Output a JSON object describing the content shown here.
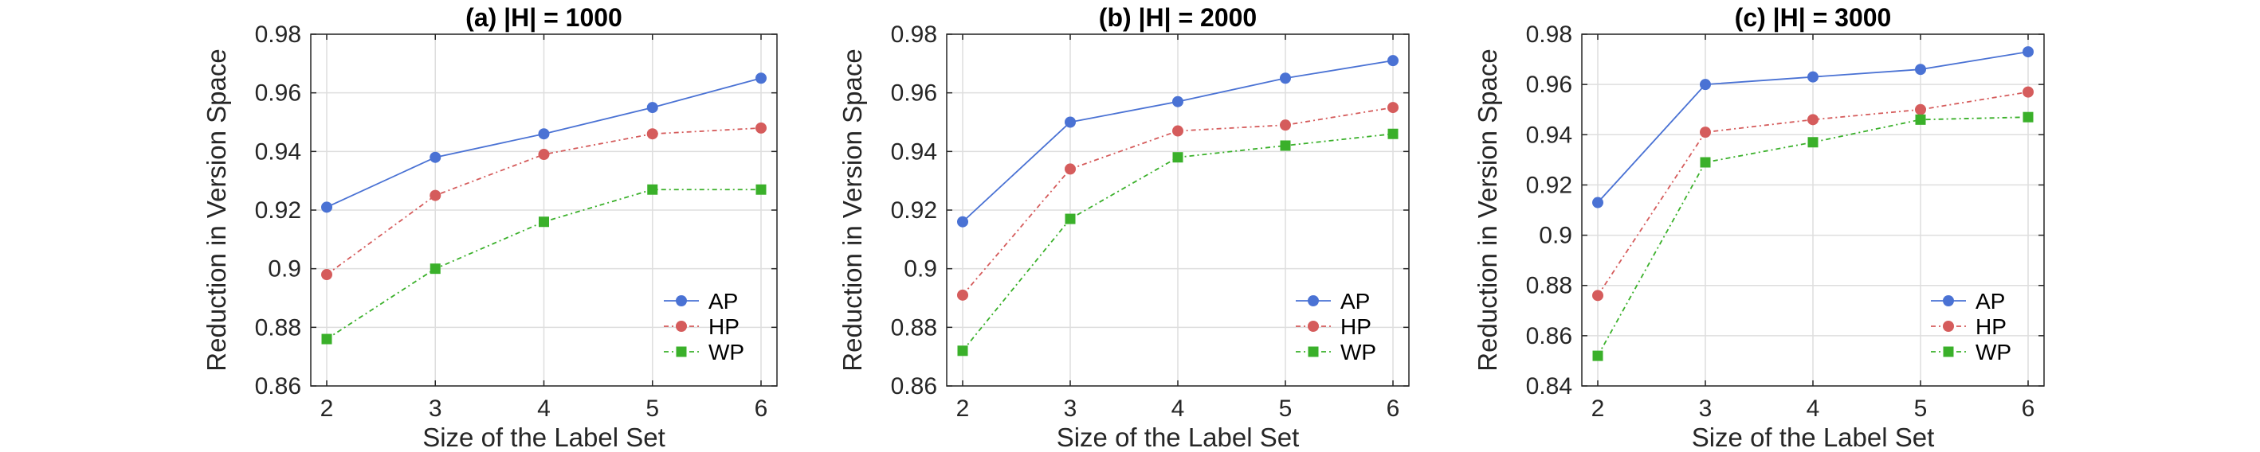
{
  "chart_data": [
    {
      "type": "line",
      "title": "(a) |H| = 1000",
      "xlabel": "Size of the Label Set",
      "ylabel": "Reduction in Version Space",
      "x": [
        2,
        3,
        4,
        5,
        6
      ],
      "xlim": [
        2,
        6
      ],
      "xticks": [
        "2",
        "3",
        "4",
        "5",
        "6"
      ],
      "ylim": [
        0.86,
        0.98
      ],
      "yticks": [
        "0.86",
        "0.88",
        "0.9",
        "0.92",
        "0.94",
        "0.96",
        "0.98"
      ],
      "grid": true,
      "legend": "bottom-right",
      "series": [
        {
          "name": "AP",
          "values": [
            0.921,
            0.938,
            0.946,
            0.955,
            0.965
          ],
          "color": "#4a72d4",
          "marker": "circle",
          "dash": ""
        },
        {
          "name": "HP",
          "values": [
            0.898,
            0.925,
            0.939,
            0.946,
            0.948
          ],
          "color": "#d55c5c",
          "marker": "circle",
          "dash": "6,4,2,4"
        },
        {
          "name": "WP",
          "values": [
            0.876,
            0.9,
            0.916,
            0.927,
            0.927
          ],
          "color": "#3ab02a",
          "marker": "square",
          "dash": "6,4,2,4"
        }
      ]
    },
    {
      "type": "line",
      "title": "(b) |H| = 2000",
      "xlabel": "Size of the Label Set",
      "ylabel": "Reduction in Version Space",
      "x": [
        2,
        3,
        4,
        5,
        6
      ],
      "xlim": [
        2,
        6
      ],
      "xticks": [
        "2",
        "3",
        "4",
        "5",
        "6"
      ],
      "ylim": [
        0.86,
        0.98
      ],
      "yticks": [
        "0.86",
        "0.88",
        "0.9",
        "0.92",
        "0.94",
        "0.96",
        "0.98"
      ],
      "grid": true,
      "legend": "bottom-right",
      "series": [
        {
          "name": "AP",
          "values": [
            0.916,
            0.95,
            0.957,
            0.965,
            0.971
          ],
          "color": "#4a72d4",
          "marker": "circle",
          "dash": ""
        },
        {
          "name": "HP",
          "values": [
            0.891,
            0.934,
            0.947,
            0.949,
            0.955
          ],
          "color": "#d55c5c",
          "marker": "circle",
          "dash": "6,4,2,4"
        },
        {
          "name": "WP",
          "values": [
            0.872,
            0.917,
            0.938,
            0.942,
            0.946
          ],
          "color": "#3ab02a",
          "marker": "square",
          "dash": "6,4,2,4"
        }
      ]
    },
    {
      "type": "line",
      "title": "(c) |H| = 3000",
      "xlabel": "Size of the Label Set",
      "ylabel": "Reduction in Version Space",
      "x": [
        2,
        3,
        4,
        5,
        6
      ],
      "xlim": [
        2,
        6
      ],
      "xticks": [
        "2",
        "3",
        "4",
        "5",
        "6"
      ],
      "ylim": [
        0.84,
        0.98
      ],
      "yticks": [
        "0.84",
        "0.86",
        "0.88",
        "0.9",
        "0.92",
        "0.94",
        "0.96",
        "0.98"
      ],
      "grid": true,
      "legend": "bottom-right",
      "series": [
        {
          "name": "AP",
          "values": [
            0.913,
            0.96,
            0.963,
            0.966,
            0.973
          ],
          "color": "#4a72d4",
          "marker": "circle",
          "dash": ""
        },
        {
          "name": "HP",
          "values": [
            0.876,
            0.941,
            0.946,
            0.95,
            0.957
          ],
          "color": "#d55c5c",
          "marker": "circle",
          "dash": "6,4,2,4"
        },
        {
          "name": "WP",
          "values": [
            0.852,
            0.929,
            0.937,
            0.946,
            0.947
          ],
          "color": "#3ab02a",
          "marker": "square",
          "dash": "6,4,2,4"
        }
      ]
    }
  ]
}
